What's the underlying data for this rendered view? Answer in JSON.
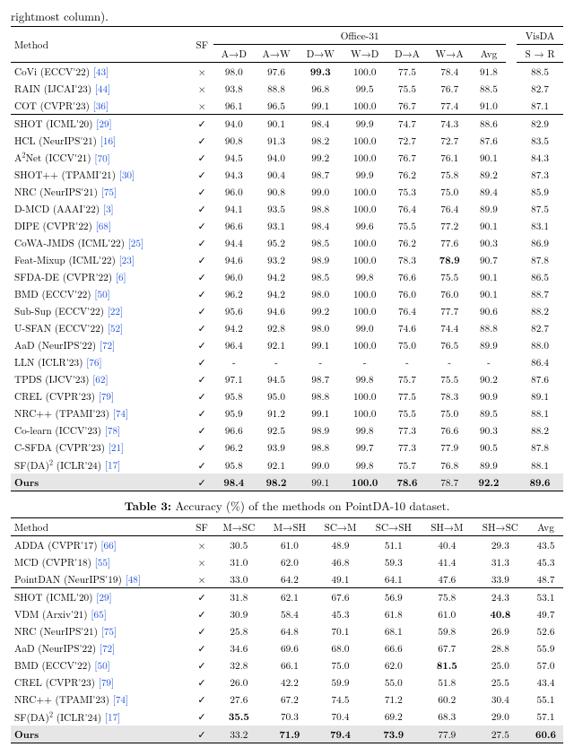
{
  "fragment_top": "rightmost column).",
  "table2": {
    "header": {
      "method": "Method",
      "sf": "SF",
      "office31": "Office-31",
      "visda": "VisDA",
      "cols_office": [
        "A→D",
        "A→W",
        "D→W",
        "W→D",
        "D→A",
        "W→A",
        "Avg"
      ],
      "col_visda": "S → R"
    },
    "rows": [
      {
        "method": "CoVi (ECCV'22)",
        "cite": "[43]",
        "sf": false,
        "vals": [
          "98.0",
          "97.6",
          "99.3",
          "100.0",
          "77.5",
          "78.4",
          "91.8",
          "88.5"
        ],
        "bold": [
          false,
          false,
          true,
          false,
          false,
          false,
          false,
          false
        ],
        "sep": false
      },
      {
        "method": "RAIN (IJCAI'23)",
        "cite": "[44]",
        "sf": false,
        "vals": [
          "93.8",
          "88.8",
          "96.8",
          "99.5",
          "75.5",
          "76.7",
          "88.5",
          "82.7"
        ],
        "bold": [
          false,
          false,
          false,
          false,
          false,
          false,
          false,
          false
        ],
        "sep": false
      },
      {
        "method": "COT (CVPR'23)",
        "cite": "[36]",
        "sf": false,
        "vals": [
          "96.1",
          "96.5",
          "99.1",
          "100.0",
          "76.7",
          "77.4",
          "91.0",
          "87.1"
        ],
        "bold": [
          false,
          false,
          false,
          false,
          false,
          false,
          false,
          false
        ],
        "sep": true
      },
      {
        "method": "SHOT (ICML'20)",
        "cite": "[29]",
        "sf": true,
        "vals": [
          "94.0",
          "90.1",
          "98.4",
          "99.9",
          "74.7",
          "74.3",
          "88.6",
          "82.9"
        ],
        "bold": [
          false,
          false,
          false,
          false,
          false,
          false,
          false,
          false
        ],
        "sep": false
      },
      {
        "method": "HCL (NeurIPS'21)",
        "cite": "[16]",
        "sf": true,
        "vals": [
          "90.8",
          "91.3",
          "98.2",
          "100.0",
          "72.7",
          "72.7",
          "87.6",
          "83.5"
        ],
        "bold": [
          false,
          false,
          false,
          false,
          false,
          false,
          false,
          false
        ],
        "sep": false
      },
      {
        "method": "A<sup>2</sup>Net (ICCV'21)",
        "cite": "[70]",
        "sf": true,
        "vals": [
          "94.5",
          "94.0",
          "99.2",
          "100.0",
          "76.7",
          "76.1",
          "90.1",
          "84.3"
        ],
        "bold": [
          false,
          false,
          false,
          false,
          false,
          false,
          false,
          false
        ],
        "sep": false
      },
      {
        "method": "SHOT++ (TPAMI'21)",
        "cite": "[30]",
        "sf": true,
        "vals": [
          "94.3",
          "90.4",
          "98.7",
          "99.9",
          "76.2",
          "75.8",
          "89.2",
          "87.3"
        ],
        "bold": [
          false,
          false,
          false,
          false,
          false,
          false,
          false,
          false
        ],
        "sep": false
      },
      {
        "method": "NRC (NeurIPS'21)",
        "cite": "[75]",
        "sf": true,
        "vals": [
          "96.0",
          "90.8",
          "99.0",
          "100.0",
          "75.3",
          "75.0",
          "89.4",
          "85.9"
        ],
        "bold": [
          false,
          false,
          false,
          false,
          false,
          false,
          false,
          false
        ],
        "sep": false
      },
      {
        "method": "D-MCD (AAAI'22)",
        "cite": "[3]",
        "sf": true,
        "vals": [
          "94.1",
          "93.5",
          "98.8",
          "100.0",
          "76.4",
          "76.4",
          "89.9",
          "87.5"
        ],
        "bold": [
          false,
          false,
          false,
          false,
          false,
          false,
          false,
          false
        ],
        "sep": false
      },
      {
        "method": "DIPE (CVPR'22)",
        "cite": "[68]",
        "sf": true,
        "vals": [
          "96.6",
          "93.1",
          "98.4",
          "99.6",
          "75.5",
          "77.2",
          "90.1",
          "83.1"
        ],
        "bold": [
          false,
          false,
          false,
          false,
          false,
          false,
          false,
          false
        ],
        "sep": false
      },
      {
        "method": "CoWA-JMDS (ICML'22)",
        "cite": "[25]",
        "sf": true,
        "vals": [
          "94.4",
          "95.2",
          "98.5",
          "100.0",
          "76.2",
          "77.6",
          "90.3",
          "86.9"
        ],
        "bold": [
          false,
          false,
          false,
          false,
          false,
          false,
          false,
          false
        ],
        "sep": false
      },
      {
        "method": "Feat-Mixup (ICML'22)",
        "cite": "[23]",
        "sf": true,
        "vals": [
          "94.6",
          "93.2",
          "98.9",
          "100.0",
          "78.3",
          "78.9",
          "90.7",
          "87.8"
        ],
        "bold": [
          false,
          false,
          false,
          false,
          false,
          true,
          false,
          false
        ],
        "sep": false
      },
      {
        "method": "SFDA-DE (CVPR'22)",
        "cite": "[6]",
        "sf": true,
        "vals": [
          "96.0",
          "94.2",
          "98.5",
          "99.8",
          "76.6",
          "75.5",
          "90.1",
          "86.5"
        ],
        "bold": [
          false,
          false,
          false,
          false,
          false,
          false,
          false,
          false
        ],
        "sep": false
      },
      {
        "method": "BMD (ECCV'22)",
        "cite": "[50]",
        "sf": true,
        "vals": [
          "96.2",
          "94.2",
          "98.0",
          "100.0",
          "76.0",
          "76.0",
          "90.1",
          "88.7"
        ],
        "bold": [
          false,
          false,
          false,
          false,
          false,
          false,
          false,
          false
        ],
        "sep": false
      },
      {
        "method": "Sub-Sup (ECCV'22)",
        "cite": "[22]",
        "sf": true,
        "vals": [
          "95.6",
          "94.6",
          "99.2",
          "100.0",
          "76.4",
          "77.7",
          "90.6",
          "88.2"
        ],
        "bold": [
          false,
          false,
          false,
          false,
          false,
          false,
          false,
          false
        ],
        "sep": false
      },
      {
        "method": "U-SFAN (ECCV'22)",
        "cite": "[52]",
        "sf": true,
        "vals": [
          "94.2",
          "92.8",
          "98.0",
          "99.0",
          "74.6",
          "74.4",
          "88.8",
          "82.7"
        ],
        "bold": [
          false,
          false,
          false,
          false,
          false,
          false,
          false,
          false
        ],
        "sep": false
      },
      {
        "method": "AaD (NeurIPS'22)",
        "cite": "[72]",
        "sf": true,
        "vals": [
          "96.4",
          "92.1",
          "99.1",
          "100.0",
          "75.0",
          "76.5",
          "89.9",
          "88.0"
        ],
        "bold": [
          false,
          false,
          false,
          false,
          false,
          false,
          false,
          false
        ],
        "sep": false
      },
      {
        "method": "LLN (ICLR'23)",
        "cite": "[76]",
        "sf": true,
        "vals": [
          "-",
          "-",
          "-",
          "-",
          "-",
          "-",
          "-",
          "86.4"
        ],
        "bold": [
          false,
          false,
          false,
          false,
          false,
          false,
          false,
          false
        ],
        "sep": false
      },
      {
        "method": "TPDS (IJCV'23)",
        "cite": "[62]",
        "sf": true,
        "vals": [
          "97.1",
          "94.5",
          "98.7",
          "99.8",
          "75.7",
          "75.5",
          "90.2",
          "87.6"
        ],
        "bold": [
          false,
          false,
          false,
          false,
          false,
          false,
          false,
          false
        ],
        "sep": false
      },
      {
        "method": "CREL (CVPR'23)",
        "cite": "[79]",
        "sf": true,
        "vals": [
          "95.8",
          "95.0",
          "98.8",
          "100.0",
          "77.5",
          "78.3",
          "90.9",
          "89.1"
        ],
        "bold": [
          false,
          false,
          false,
          false,
          false,
          false,
          false,
          false
        ],
        "sep": false
      },
      {
        "method": "NRC++ (TPAMI'23)",
        "cite": "[74]",
        "sf": true,
        "vals": [
          "95.9",
          "91.2",
          "99.1",
          "100.0",
          "75.5",
          "75.0",
          "89.5",
          "88.1"
        ],
        "bold": [
          false,
          false,
          false,
          false,
          false,
          false,
          false,
          false
        ],
        "sep": false
      },
      {
        "method": "Co-learn (ICCV'23)",
        "cite": "[78]",
        "sf": true,
        "vals": [
          "96.6",
          "92.5",
          "98.9",
          "99.8",
          "77.3",
          "76.6",
          "90.3",
          "88.2"
        ],
        "bold": [
          false,
          false,
          false,
          false,
          false,
          false,
          false,
          false
        ],
        "sep": false
      },
      {
        "method": "C-SFDA (CVPR'23)",
        "cite": "[21]",
        "sf": true,
        "vals": [
          "96.2",
          "93.9",
          "98.8",
          "99.7",
          "77.3",
          "77.9",
          "90.5",
          "87.8"
        ],
        "bold": [
          false,
          false,
          false,
          false,
          false,
          false,
          false,
          false
        ],
        "sep": false
      },
      {
        "method": "SF(DA)<sup>2</sup> (ICLR'24)",
        "cite": "[17]",
        "sf": true,
        "vals": [
          "95.8",
          "92.1",
          "99.0",
          "99.8",
          "75.7",
          "76.8",
          "89.9",
          "88.1"
        ],
        "bold": [
          false,
          false,
          false,
          false,
          false,
          false,
          false,
          false
        ],
        "sep": false
      }
    ],
    "ours": {
      "method": "Ours",
      "sf": true,
      "vals": [
        "98.4",
        "98.2",
        "99.1",
        "100.0",
        "78.6",
        "78.7",
        "92.2",
        "89.6"
      ],
      "bold": [
        true,
        true,
        false,
        true,
        true,
        false,
        true,
        true
      ]
    }
  },
  "caption3": "Accuracy (%) of the methods on PointDA-10 dataset.",
  "caption3_label": "Table 3:",
  "table3": {
    "header": {
      "method": "Method",
      "sf": "SF",
      "cols": [
        "M→SC",
        "M→SH",
        "SC→M",
        "SC→SH",
        "SH→M",
        "SH→SC",
        "Avg"
      ]
    },
    "rows": [
      {
        "method": "ADDA (CVPR'17)",
        "cite": "[66]",
        "sf": false,
        "vals": [
          "30.5",
          "61.0",
          "48.9",
          "51.1",
          "40.4",
          "29.3",
          "43.5"
        ],
        "bold": [
          false,
          false,
          false,
          false,
          false,
          false,
          false
        ],
        "sep": false
      },
      {
        "method": "MCD (CVPR'18)",
        "cite": "[55]",
        "sf": false,
        "vals": [
          "31.0",
          "62.0",
          "46.8",
          "59.3",
          "41.4",
          "31.3",
          "45.3"
        ],
        "bold": [
          false,
          false,
          false,
          false,
          false,
          false,
          false
        ],
        "sep": false
      },
      {
        "method": "PointDAN (NeurIPS'19)",
        "cite": "[48]",
        "sf": false,
        "vals": [
          "33.0",
          "64.2",
          "49.1",
          "64.1",
          "47.6",
          "33.9",
          "48.7"
        ],
        "bold": [
          false,
          false,
          false,
          false,
          false,
          false,
          false
        ],
        "sep": true
      },
      {
        "method": "SHOT (ICML'20)",
        "cite": "[29]",
        "sf": true,
        "vals": [
          "31.8",
          "62.1",
          "67.6",
          "56.9",
          "75.8",
          "24.3",
          "53.1"
        ],
        "bold": [
          false,
          false,
          false,
          false,
          false,
          false,
          false
        ],
        "sep": false
      },
      {
        "method": "VDM (Arxiv'21)",
        "cite": "[65]",
        "sf": true,
        "vals": [
          "30.9",
          "58.4",
          "45.3",
          "61.8",
          "61.0",
          "40.8",
          "49.7"
        ],
        "bold": [
          false,
          false,
          false,
          false,
          false,
          true,
          false
        ],
        "sep": false
      },
      {
        "method": "NRC (NeurIPS'21)",
        "cite": "[75]",
        "sf": true,
        "vals": [
          "25.8",
          "64.8",
          "70.1",
          "68.1",
          "59.8",
          "26.9",
          "52.6"
        ],
        "bold": [
          false,
          false,
          false,
          false,
          false,
          false,
          false
        ],
        "sep": false
      },
      {
        "method": "AaD (NeurIPS'22)",
        "cite": "[72]",
        "sf": true,
        "vals": [
          "34.6",
          "69.6",
          "68.0",
          "66.6",
          "67.7",
          "28.8",
          "55.9"
        ],
        "bold": [
          false,
          false,
          false,
          false,
          false,
          false,
          false
        ],
        "sep": false
      },
      {
        "method": "BMD (ECCV'22)",
        "cite": "[50]",
        "sf": true,
        "vals": [
          "32.8",
          "66.1",
          "75.0",
          "62.0",
          "81.5",
          "25.0",
          "57.0"
        ],
        "bold": [
          false,
          false,
          false,
          false,
          true,
          false,
          false
        ],
        "sep": false
      },
      {
        "method": "CREL (CVPR'23)",
        "cite": "[79]",
        "sf": true,
        "vals": [
          "26.0",
          "42.2",
          "59.9",
          "55.0",
          "51.8",
          "25.5",
          "43.4"
        ],
        "bold": [
          false,
          false,
          false,
          false,
          false,
          false,
          false
        ],
        "sep": false
      },
      {
        "method": "NRC++ (TPAMI'23)",
        "cite": "[74]",
        "sf": true,
        "vals": [
          "27.6",
          "67.2",
          "74.5",
          "71.2",
          "60.2",
          "30.4",
          "55.1"
        ],
        "bold": [
          false,
          false,
          false,
          false,
          false,
          false,
          false
        ],
        "sep": false
      },
      {
        "method": "SF(DA)<sup>2</sup> (ICLR'24)",
        "cite": "[17]",
        "sf": true,
        "vals": [
          "35.5",
          "70.3",
          "70.4",
          "69.2",
          "68.3",
          "29.0",
          "57.1"
        ],
        "bold": [
          true,
          false,
          false,
          false,
          false,
          false,
          false
        ],
        "sep": false
      }
    ],
    "ours": {
      "method": "Ours",
      "sf": true,
      "vals": [
        "33.2",
        "71.9",
        "79.4",
        "73.9",
        "77.9",
        "27.5",
        "60.6"
      ],
      "bold": [
        false,
        true,
        true,
        true,
        false,
        false,
        true
      ]
    }
  }
}
